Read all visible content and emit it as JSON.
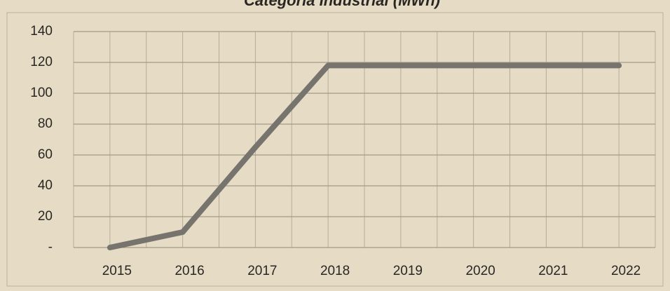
{
  "chart_data": {
    "type": "line",
    "title": "Categoria Industrial (MWh)",
    "categories": [
      "2015",
      "2016",
      "2017",
      "2018",
      "2019",
      "2020",
      "2021",
      "2022"
    ],
    "series": [
      {
        "color": "#77736d",
        "values": [
          0,
          10,
          65,
          118,
          118,
          118,
          118,
          118
        ]
      }
    ],
    "ylim": [
      0,
      140
    ],
    "yticks": [
      {
        "value": 0,
        "label": "-"
      },
      20,
      40,
      60,
      80,
      100,
      120,
      140
    ],
    "grid": true
  }
}
